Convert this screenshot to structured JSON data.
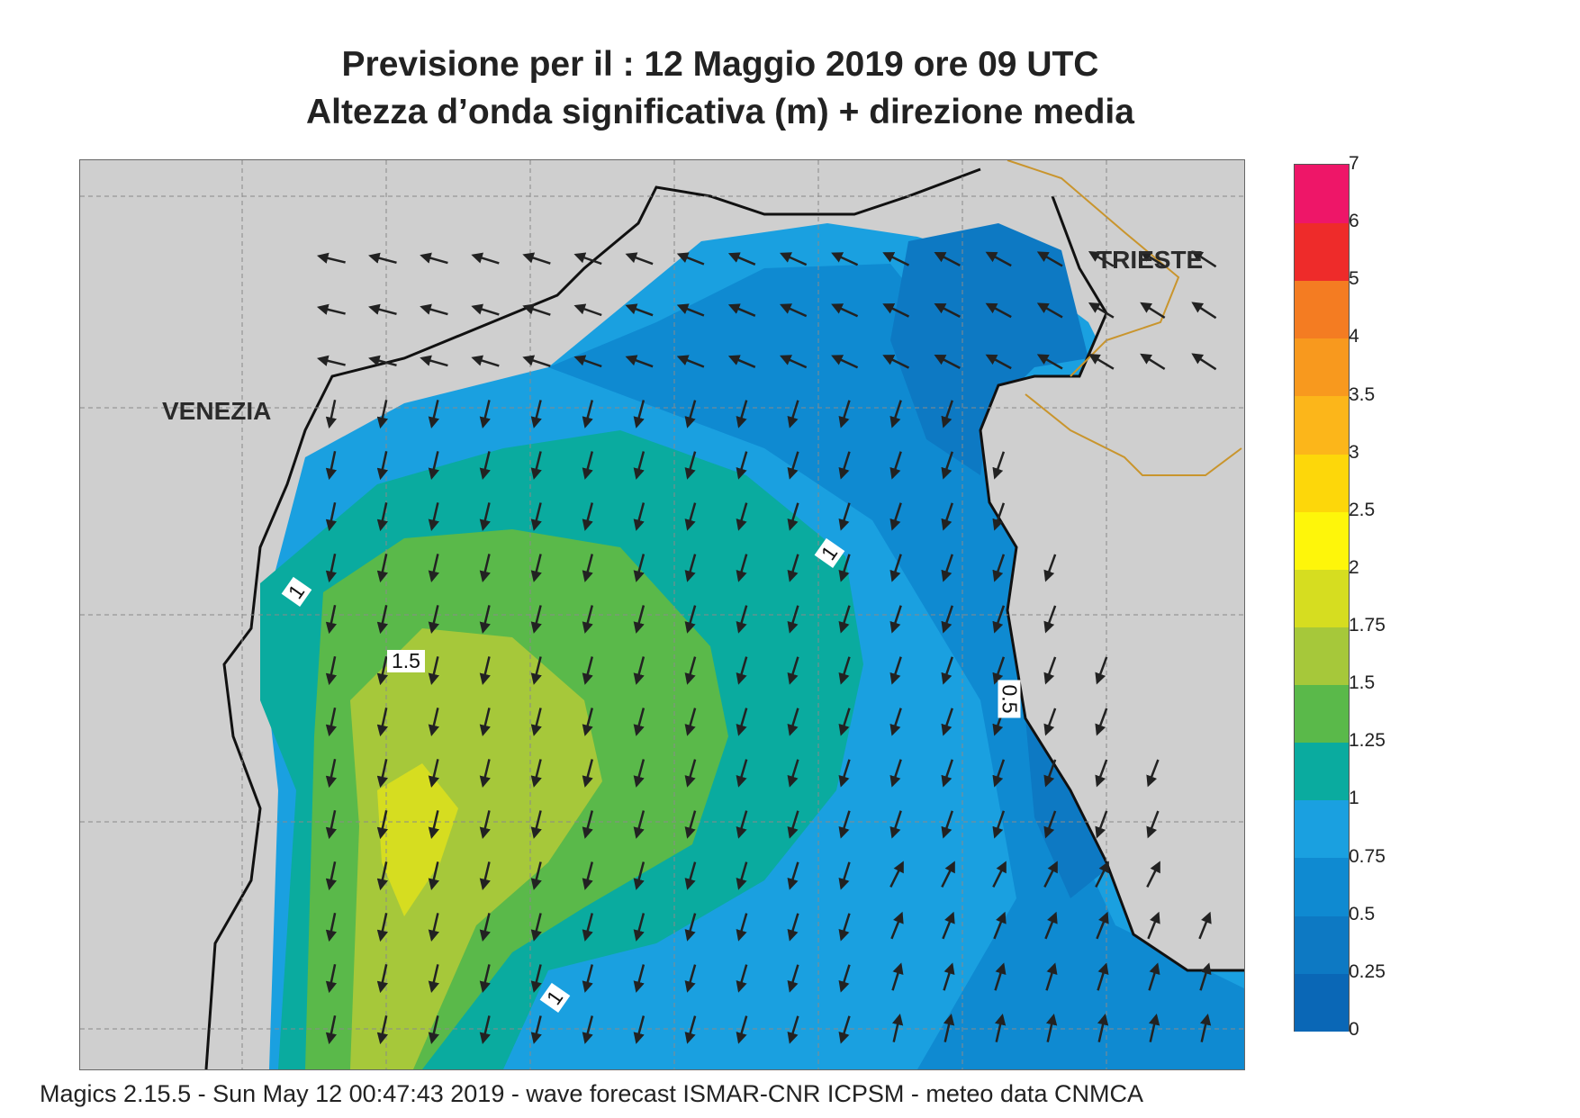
{
  "title_line_1": "Previsione per il  :  12   Maggio  2019   ore 09 UTC",
  "title_line_2": "Altezza d’onda significativa (m) + direzione media",
  "places": {
    "venezia": "VENEZIA",
    "trieste": "TRIESTE"
  },
  "contour_labels": {
    "c1a": "1",
    "c1b": "1",
    "c1c": "1",
    "c15": "1.5",
    "c05": "0.5"
  },
  "colorbar": {
    "unit": "m",
    "levels": [
      "0",
      "0.25",
      "0.5",
      "0.75",
      "1",
      "1.25",
      "1.5",
      "1.75",
      "2",
      "2.5",
      "3",
      "3.5",
      "4",
      "5",
      "6",
      "7"
    ],
    "colors": [
      "#0a67b6",
      "#0d79c3",
      "#0f8ad1",
      "#1aa0e0",
      "#0aab9f",
      "#5ab94a",
      "#a6c83a",
      "#d6dd20",
      "#fef60a",
      "#fdd70a",
      "#fcb61a",
      "#f8991e",
      "#f47c22",
      "#ee2b2a",
      "#ee1668"
    ]
  },
  "land_color": "#cfcfcf",
  "coast_color": "#111111",
  "border_color": "#c9952d",
  "arrow_color": "#222222",
  "footer": "Magics 2.15.5 - Sun May 12 00:47:43 2019 - wave forecast  ISMAR-CNR  ICPSM - meteo data   CNMCA"
}
